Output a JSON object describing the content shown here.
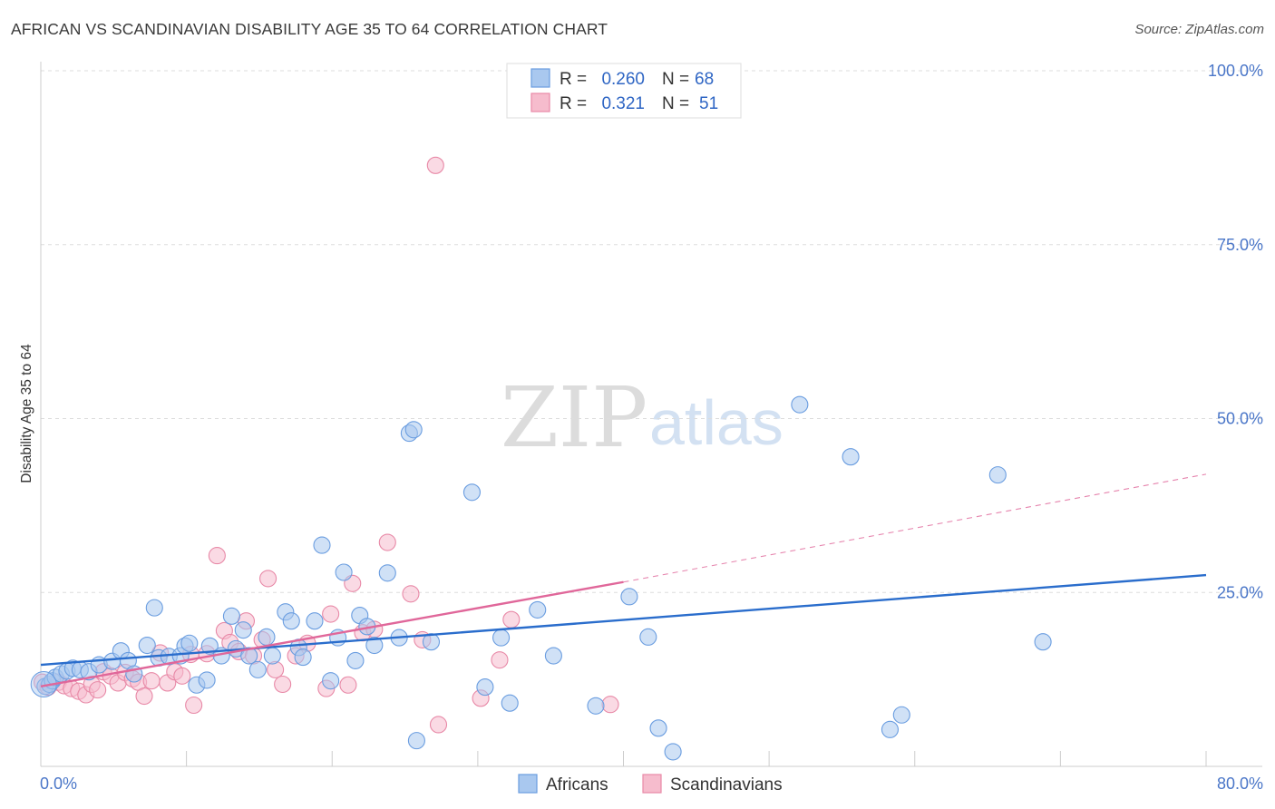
{
  "title": "AFRICAN VS SCANDINAVIAN DISABILITY AGE 35 TO 64 CORRELATION CHART",
  "source": "Source: ZipAtlas.com",
  "watermark": {
    "zip": "ZIP",
    "atlas": "atlas"
  },
  "colors": {
    "africans_fill": "#a9c8ef",
    "africans_stroke": "#6a9de0",
    "africans_line": "#2a6dcc",
    "scandinavians_fill": "#f6bccd",
    "scandinavians_stroke": "#e889a7",
    "scandinavians_line": "#e0679a",
    "tick_label": "#4a76c8",
    "grid": "#dddddd"
  },
  "legend": {
    "rows": [
      {
        "r_label": "R =",
        "r_value": "0.260",
        "n_label": "N =",
        "n_value": "68"
      },
      {
        "r_label": "R =",
        "r_value": "0.321",
        "n_label": "N =",
        "n_value": "51"
      }
    ]
  },
  "chart_data": {
    "type": "scatter",
    "title": "AFRICAN VS SCANDINAVIAN DISABILITY AGE 35 TO 64 CORRELATION CHART",
    "xlabel": "",
    "ylabel": "Disability Age 35 to 64",
    "xlim": [
      0,
      80
    ],
    "ylim": [
      0,
      100
    ],
    "x_tick_labels": [
      "0.0%",
      "80.0%"
    ],
    "y_ticks": [
      25,
      50,
      75,
      100
    ],
    "y_tick_labels": [
      "25.0%",
      "50.0%",
      "75.0%",
      "100.0%"
    ],
    "grid": true,
    "legend_position": "top-center",
    "series": [
      {
        "name": "Africans",
        "r": 0.26,
        "n": 68,
        "trend": {
          "x": [
            0,
            80
          ],
          "y": [
            14.6,
            27.5
          ],
          "dashed_extension": false
        },
        "points": [
          [
            0.3,
            11.5
          ],
          [
            0.6,
            11.8
          ],
          [
            0.8,
            12.3
          ],
          [
            1.0,
            12.8
          ],
          [
            1.4,
            13.3
          ],
          [
            1.8,
            13.7
          ],
          [
            2.2,
            14.1
          ],
          [
            2.7,
            13.9
          ],
          [
            3.3,
            13.6
          ],
          [
            4.0,
            14.6
          ],
          [
            4.9,
            15.1
          ],
          [
            5.5,
            16.6
          ],
          [
            6.0,
            15.2
          ],
          [
            6.4,
            13.3
          ],
          [
            7.3,
            17.4
          ],
          [
            7.8,
            22.8
          ],
          [
            8.1,
            15.6
          ],
          [
            8.8,
            15.8
          ],
          [
            9.6,
            15.9
          ],
          [
            9.9,
            17.3
          ],
          [
            10.2,
            17.7
          ],
          [
            10.7,
            11.7
          ],
          [
            11.4,
            12.4
          ],
          [
            11.6,
            17.3
          ],
          [
            12.4,
            15.9
          ],
          [
            13.1,
            21.6
          ],
          [
            13.4,
            16.9
          ],
          [
            13.9,
            19.6
          ],
          [
            14.3,
            15.9
          ],
          [
            14.9,
            13.9
          ],
          [
            15.5,
            18.6
          ],
          [
            15.9,
            15.9
          ],
          [
            16.8,
            22.2
          ],
          [
            17.2,
            20.9
          ],
          [
            17.7,
            17.1
          ],
          [
            18.0,
            15.7
          ],
          [
            18.8,
            20.9
          ],
          [
            19.3,
            31.8
          ],
          [
            19.9,
            12.3
          ],
          [
            20.4,
            18.5
          ],
          [
            20.8,
            27.9
          ],
          [
            21.6,
            15.2
          ],
          [
            21.9,
            21.7
          ],
          [
            22.4,
            20.1
          ],
          [
            22.9,
            17.4
          ],
          [
            23.8,
            27.8
          ],
          [
            24.6,
            18.5
          ],
          [
            25.3,
            47.9
          ],
          [
            25.6,
            48.4
          ],
          [
            25.8,
            3.7
          ],
          [
            26.8,
            17.9
          ],
          [
            29.6,
            39.4
          ],
          [
            30.5,
            11.4
          ],
          [
            31.6,
            18.5
          ],
          [
            32.2,
            9.1
          ],
          [
            34.1,
            22.5
          ],
          [
            35.2,
            15.9
          ],
          [
            38.1,
            8.7
          ],
          [
            40.4,
            24.4
          ],
          [
            41.7,
            18.6
          ],
          [
            42.4,
            5.5
          ],
          [
            43.4,
            2.1
          ],
          [
            52.1,
            52.0
          ],
          [
            55.6,
            44.5
          ],
          [
            58.3,
            5.3
          ],
          [
            59.1,
            7.4
          ],
          [
            65.7,
            41.9
          ],
          [
            68.8,
            17.9
          ]
        ]
      },
      {
        "name": "Scandinavians",
        "r": 0.321,
        "n": 51,
        "trend": {
          "x": [
            0,
            40
          ],
          "y": [
            11.5,
            26.5
          ],
          "dashed_extension": true,
          "dashed_to": {
            "x": 80,
            "y": 42.0
          }
        },
        "points": [
          [
            0.1,
            12.1
          ],
          [
            0.5,
            11.4
          ],
          [
            1.2,
            12.1
          ],
          [
            1.6,
            11.6
          ],
          [
            2.1,
            11.2
          ],
          [
            2.6,
            10.8
          ],
          [
            3.1,
            10.3
          ],
          [
            3.5,
            11.8
          ],
          [
            3.9,
            11.0
          ],
          [
            4.3,
            13.6
          ],
          [
            4.8,
            13.0
          ],
          [
            5.3,
            12.0
          ],
          [
            5.8,
            13.5
          ],
          [
            6.3,
            12.6
          ],
          [
            6.7,
            12.1
          ],
          [
            7.1,
            10.1
          ],
          [
            7.6,
            12.3
          ],
          [
            8.2,
            16.3
          ],
          [
            8.7,
            12.0
          ],
          [
            9.2,
            13.6
          ],
          [
            9.7,
            13.0
          ],
          [
            10.3,
            16.1
          ],
          [
            10.5,
            8.8
          ],
          [
            11.4,
            16.2
          ],
          [
            12.1,
            30.3
          ],
          [
            12.6,
            19.5
          ],
          [
            13.0,
            17.8
          ],
          [
            13.6,
            16.5
          ],
          [
            14.1,
            20.9
          ],
          [
            14.6,
            15.9
          ],
          [
            15.2,
            18.2
          ],
          [
            15.6,
            27.0
          ],
          [
            16.1,
            13.9
          ],
          [
            16.6,
            11.8
          ],
          [
            17.5,
            15.9
          ],
          [
            18.3,
            17.7
          ],
          [
            19.6,
            11.2
          ],
          [
            19.9,
            21.9
          ],
          [
            21.1,
            11.7
          ],
          [
            21.4,
            26.3
          ],
          [
            22.1,
            19.2
          ],
          [
            22.9,
            19.7
          ],
          [
            23.8,
            32.2
          ],
          [
            25.4,
            24.8
          ],
          [
            26.2,
            18.2
          ],
          [
            27.1,
            86.4
          ],
          [
            27.3,
            6.0
          ],
          [
            30.2,
            9.8
          ],
          [
            31.5,
            15.3
          ],
          [
            32.3,
            21.1
          ],
          [
            39.1,
            8.9
          ]
        ]
      }
    ]
  },
  "bottom_legend": [
    "Africans",
    "Scandinavians"
  ]
}
